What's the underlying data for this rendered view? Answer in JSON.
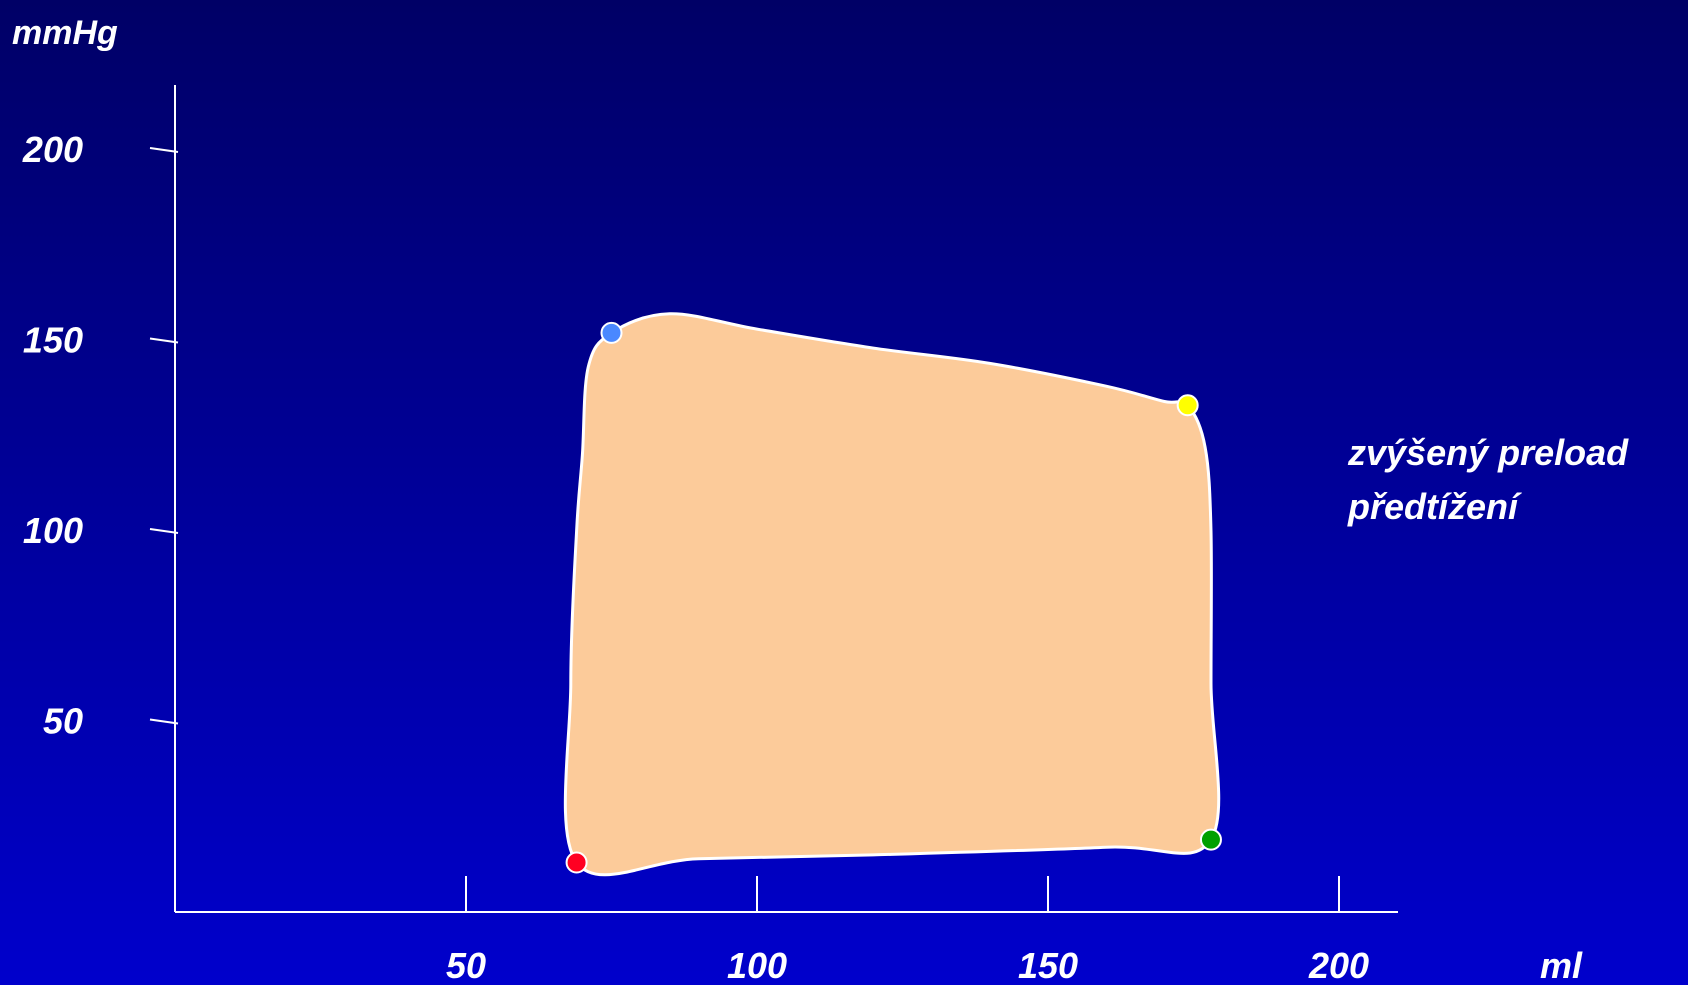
{
  "chart_data": {
    "type": "area",
    "title": "",
    "xlabel": "ml",
    "ylabel": "mmHg",
    "x_ticks": [
      50,
      100,
      150,
      200
    ],
    "y_ticks": [
      50,
      100,
      150,
      200
    ],
    "xlim": [
      0,
      210
    ],
    "ylim": [
      0,
      210
    ],
    "grid": false,
    "fill_color": "#fccb9a",
    "outline_color": "#ffffff",
    "loop": [
      [
        69,
        13
      ],
      [
        68,
        60
      ],
      [
        69,
        100
      ],
      [
        70,
        120
      ],
      [
        71,
        143
      ],
      [
        75,
        152
      ],
      [
        85,
        157
      ],
      [
        100,
        153
      ],
      [
        120,
        148
      ],
      [
        140,
        144
      ],
      [
        160,
        138
      ],
      [
        170,
        134
      ],
      [
        174,
        133
      ],
      [
        177,
        122
      ],
      [
        178,
        100
      ],
      [
        178,
        60
      ],
      [
        178,
        19
      ],
      [
        160,
        17
      ],
      [
        120,
        15
      ],
      [
        90,
        14
      ],
      [
        69,
        13
      ]
    ],
    "points": [
      {
        "x": 75,
        "y": 152,
        "color": "#4a88ff"
      },
      {
        "x": 174,
        "y": 133,
        "color": "#ffff00"
      },
      {
        "x": 178,
        "y": 19,
        "color": "#00a000"
      },
      {
        "x": 69,
        "y": 13,
        "color": "#ff0022"
      }
    ],
    "annotations": [
      "zvýšený preload",
      "předtížení"
    ]
  }
}
